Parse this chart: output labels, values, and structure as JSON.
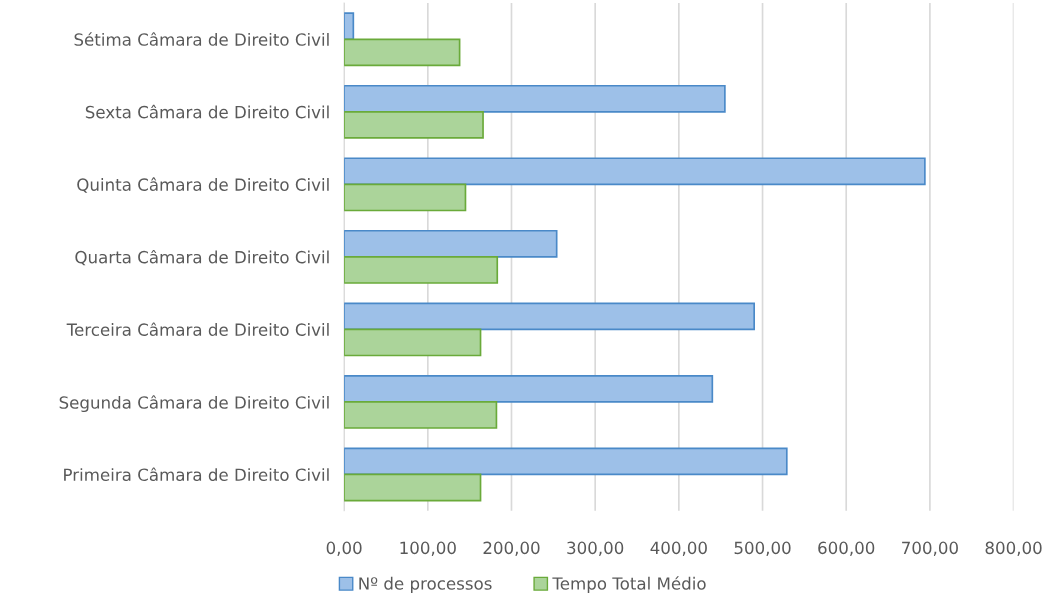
{
  "chart_data": {
    "type": "bar",
    "orientation": "horizontal",
    "categories": [
      "Sétima Câmara de Direito Civil",
      "Sexta Câmara de Direito Civil",
      "Quinta Câmara de Direito Civil",
      "Quarta Câmara de Direito Civil",
      "Terceira Câmara de Direito Civil",
      "Segunda Câmara de Direito Civil",
      "Primeira Câmara de Direito Civil"
    ],
    "series": [
      {
        "name": "Nº de processos",
        "color": "#9dc0e8",
        "values": [
          11,
          455,
          694,
          254,
          490,
          440,
          529
        ]
      },
      {
        "name": "Tempo Total Médio",
        "color": "#abd49a",
        "values": [
          138,
          166,
          145,
          183,
          163,
          182,
          163
        ]
      }
    ],
    "xlim": [
      0,
      800
    ],
    "xticks": [
      {
        "value": 0,
        "label": "0,00"
      },
      {
        "value": 100,
        "label": "100,00"
      },
      {
        "value": 200,
        "label": "200,00"
      },
      {
        "value": 300,
        "label": "300,00"
      },
      {
        "value": 400,
        "label": "400,00"
      },
      {
        "value": 500,
        "label": "500,00"
      },
      {
        "value": 600,
        "label": "600,00"
      },
      {
        "value": 700,
        "label": "700,00"
      },
      {
        "value": 800,
        "label": "800,00"
      }
    ],
    "grid": "x",
    "legend": "bottom"
  }
}
